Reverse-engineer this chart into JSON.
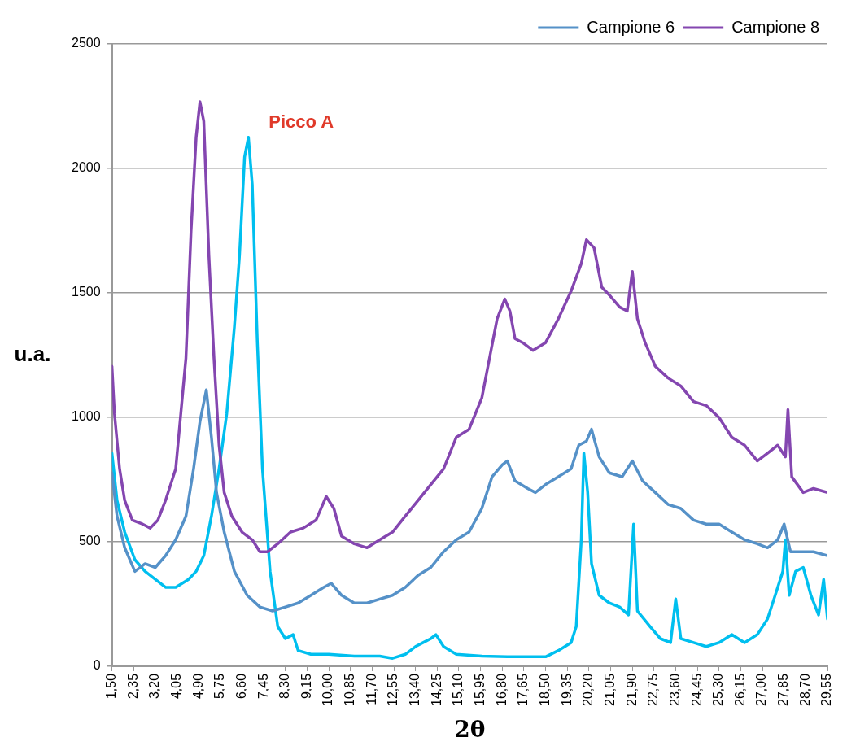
{
  "chart_data": {
    "type": "line",
    "xlabel": "2θ",
    "ylabel": "u.a.",
    "grid": "y",
    "legend": "top right",
    "marker": "none",
    "line_style": "solid",
    "xlim": [
      1.5,
      29.55
    ],
    "ylim": [
      0,
      2500
    ],
    "yticks": [
      0,
      500,
      1000,
      1500,
      2000,
      2500
    ],
    "xticks": [
      {
        "value": 1.5,
        "label": "1,50"
      },
      {
        "value": 2.35,
        "label": "2,35"
      },
      {
        "value": 3.2,
        "label": "3,20"
      },
      {
        "value": 4.05,
        "label": "4,05"
      },
      {
        "value": 4.9,
        "label": "4,90"
      },
      {
        "value": 5.75,
        "label": "5,75"
      },
      {
        "value": 6.6,
        "label": "6,60"
      },
      {
        "value": 7.45,
        "label": "7,45"
      },
      {
        "value": 8.3,
        "label": "8,30"
      },
      {
        "value": 9.15,
        "label": "9,15"
      },
      {
        "value": 10,
        "label": "10,00"
      },
      {
        "value": 10.85,
        "label": "10,85"
      },
      {
        "value": 11.7,
        "label": "11,70"
      },
      {
        "value": 12.55,
        "label": "12,55"
      },
      {
        "value": 13.4,
        "label": "13,40"
      },
      {
        "value": 14.25,
        "label": "14,25"
      },
      {
        "value": 15.1,
        "label": "15,10"
      },
      {
        "value": 15.95,
        "label": "15,95"
      },
      {
        "value": 16.8,
        "label": "16,80"
      },
      {
        "value": 17.65,
        "label": "17,65"
      },
      {
        "value": 18.5,
        "label": "18,50"
      },
      {
        "value": 19.35,
        "label": "19,35"
      },
      {
        "value": 20.2,
        "label": "20,20"
      },
      {
        "value": 21.05,
        "label": "21,05"
      },
      {
        "value": 21.9,
        "label": "21,90"
      },
      {
        "value": 22.75,
        "label": "22,75"
      },
      {
        "value": 23.6,
        "label": "23,60"
      },
      {
        "value": 24.45,
        "label": "24,45"
      },
      {
        "value": 25.3,
        "label": "25,30"
      },
      {
        "value": 26.15,
        "label": "26,15"
      },
      {
        "value": 27,
        "label": "27,00"
      },
      {
        "value": 27.85,
        "label": "27,85"
      },
      {
        "value": 28.7,
        "label": "28,70"
      },
      {
        "value": 29.55,
        "label": "29,55"
      }
    ],
    "annotations": [
      {
        "text": "Picco A",
        "x": 6.85,
        "y": 2125
      }
    ],
    "series": [
      {
        "name": "Campione 6",
        "color": "#5591c8",
        "x": [
          1.5,
          1.7,
          2.0,
          2.4,
          2.8,
          3.2,
          3.6,
          4.0,
          4.4,
          4.7,
          4.95,
          5.2,
          5.4,
          5.6,
          5.9,
          6.3,
          6.8,
          7.3,
          7.8,
          8.3,
          8.8,
          9.3,
          9.8,
          10.1,
          10.5,
          11.0,
          11.5,
          12.0,
          12.5,
          13.0,
          13.5,
          14.0,
          14.5,
          15.0,
          15.5,
          16.0,
          16.4,
          16.8,
          17.0,
          17.3,
          17.8,
          18.1,
          18.5,
          19.0,
          19.5,
          19.8,
          20.1,
          20.3,
          20.6,
          21.0,
          21.5,
          21.9,
          22.3,
          22.8,
          23.3,
          23.8,
          24.3,
          24.8,
          25.3,
          25.8,
          26.3,
          26.8,
          27.2,
          27.6,
          27.85,
          28.1,
          28.6,
          29.0,
          29.55
        ],
        "values": [
          777,
          603,
          476,
          381,
          412,
          397,
          444,
          508,
          603,
          793,
          983,
          1110,
          920,
          698,
          539,
          381,
          285,
          238,
          222,
          238,
          254,
          285,
          317,
          333,
          285,
          254,
          254,
          270,
          285,
          317,
          365,
          397,
          460,
          508,
          539,
          634,
          761,
          809,
          825,
          745,
          714,
          698,
          730,
          761,
          793,
          888,
          904,
          952,
          841,
          777,
          761,
          825,
          745,
          698,
          650,
          634,
          587,
          571,
          571,
          539,
          508,
          492,
          476,
          508,
          571,
          460,
          460,
          460,
          444
        ]
      },
      {
        "name": "Campione 8",
        "color": "#8446b0",
        "x": [
          1.5,
          1.6,
          1.8,
          2.0,
          2.3,
          2.7,
          3.0,
          3.3,
          3.6,
          4.0,
          4.2,
          4.4,
          4.6,
          4.8,
          4.95,
          5.1,
          5.3,
          5.5,
          5.7,
          5.9,
          6.2,
          6.6,
          7.0,
          7.3,
          7.6,
          8.0,
          8.5,
          9.0,
          9.5,
          9.9,
          10.2,
          10.5,
          11.0,
          11.5,
          12.0,
          12.5,
          13.0,
          13.5,
          14.0,
          14.5,
          15.0,
          15.5,
          16.0,
          16.3,
          16.6,
          16.9,
          17.1,
          17.3,
          17.6,
          18.0,
          18.5,
          19.0,
          19.5,
          19.9,
          20.1,
          20.4,
          20.7,
          21.0,
          21.4,
          21.7,
          21.9,
          22.1,
          22.4,
          22.8,
          23.3,
          23.8,
          24.3,
          24.8,
          25.3,
          25.8,
          26.3,
          26.8,
          27.2,
          27.6,
          27.9,
          28.0,
          28.15,
          28.6,
          29.0,
          29.55
        ],
        "values": [
          1205,
          1015,
          793,
          666,
          587,
          571,
          555,
          587,
          666,
          793,
          1015,
          1237,
          1745,
          2125,
          2268,
          2189,
          1649,
          1237,
          888,
          698,
          603,
          539,
          508,
          460,
          460,
          492,
          539,
          555,
          587,
          682,
          634,
          523,
          492,
          476,
          508,
          539,
          603,
          666,
          730,
          793,
          920,
          952,
          1078,
          1237,
          1396,
          1475,
          1427,
          1316,
          1300,
          1269,
          1300,
          1396,
          1507,
          1618,
          1713,
          1681,
          1523,
          1491,
          1443,
          1427,
          1586,
          1396,
          1300,
          1205,
          1158,
          1126,
          1063,
          1047,
          999,
          920,
          888,
          825,
          856,
          888,
          841,
          1031,
          761,
          698,
          714,
          698
        ]
      },
      {
        "color": "#00bfef",
        "x": [
          1.5,
          1.7,
          2.0,
          2.4,
          2.8,
          3.2,
          3.6,
          4.0,
          4.5,
          4.8,
          5.1,
          5.4,
          5.7,
          6.0,
          6.3,
          6.5,
          6.7,
          6.85,
          7.0,
          7.2,
          7.4,
          7.7,
          8.0,
          8.3,
          8.6,
          8.8,
          9.3,
          10.0,
          11.0,
          12.0,
          12.5,
          13.0,
          13.4,
          13.7,
          14.0,
          14.2,
          14.5,
          15.0,
          16.0,
          17.0,
          18.0,
          18.5,
          19.0,
          19.5,
          19.7,
          19.9,
          20.0,
          20.15,
          20.3,
          20.6,
          21.0,
          21.4,
          21.75,
          21.95,
          22.1,
          22.6,
          23.0,
          23.4,
          23.6,
          23.8,
          24.3,
          24.8,
          25.3,
          25.8,
          26.3,
          26.8,
          27.2,
          27.5,
          27.8,
          27.9,
          28.05,
          28.3,
          28.6,
          28.9,
          29.2,
          29.4,
          29.55
        ],
        "values": [
          856,
          666,
          539,
          428,
          381,
          349,
          317,
          317,
          349,
          381,
          444,
          603,
          793,
          1015,
          1364,
          1649,
          2046,
          2125,
          1935,
          1300,
          793,
          381,
          159,
          111,
          127,
          63,
          48,
          48,
          41,
          41,
          32,
          48,
          79,
          95,
          111,
          127,
          79,
          48,
          41,
          38,
          38,
          38,
          63,
          95,
          159,
          508,
          856,
          698,
          412,
          285,
          254,
          238,
          206,
          571,
          222,
          159,
          111,
          95,
          270,
          111,
          95,
          79,
          95,
          127,
          95,
          127,
          190,
          285,
          381,
          508,
          285,
          381,
          397,
          285,
          206,
          349,
          190
        ]
      }
    ]
  }
}
